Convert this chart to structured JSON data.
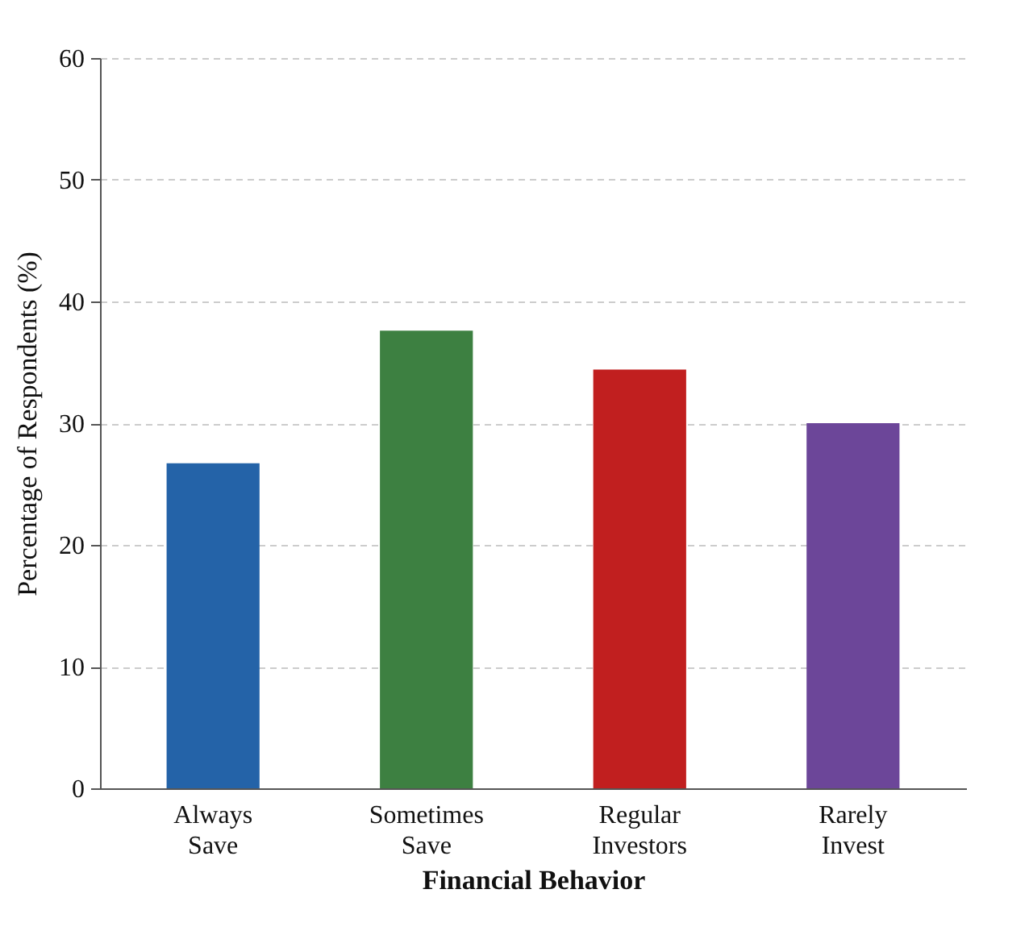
{
  "chart_data": {
    "type": "bar",
    "xlabel": "Financial Behavior",
    "ylabel": "Percentage of Respondents (%)",
    "categories": [
      "Always Save",
      "Sometimes Save",
      "Regular Investors",
      "Rarely Invest"
    ],
    "values": [
      26.7,
      37.6,
      34.4,
      30.0
    ],
    "colors": [
      "#2463a8",
      "#3d8041",
      "#c11f1f",
      "#6c4699"
    ],
    "ylim": [
      0,
      60
    ],
    "yticks": [
      0,
      10,
      20,
      30,
      40,
      50,
      60
    ],
    "grid": "y"
  }
}
